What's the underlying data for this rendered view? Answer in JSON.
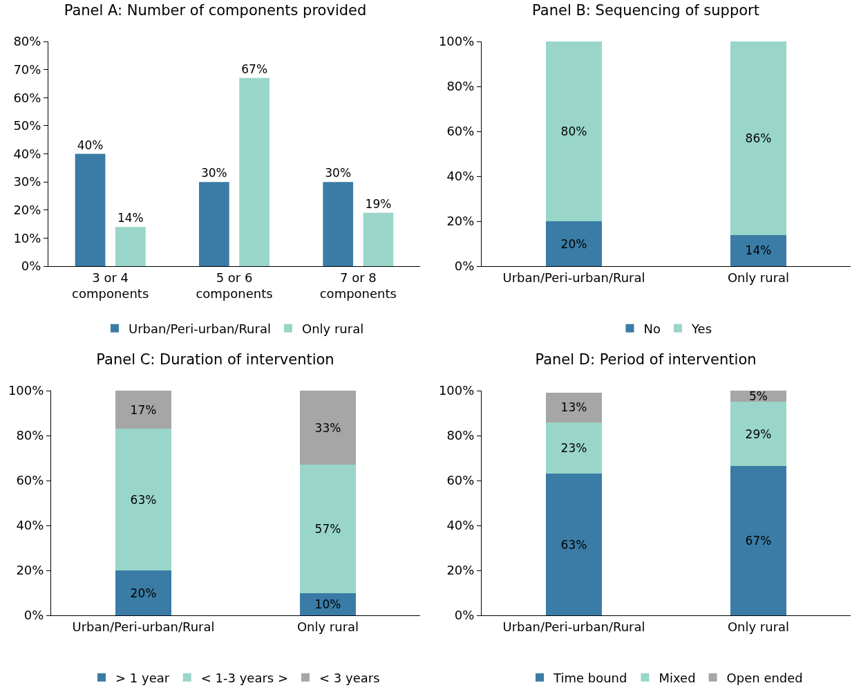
{
  "chart_data": [
    {
      "type": "bar",
      "title": "Panel A: Number of components provided",
      "categories": [
        "3 or 4 components",
        "5 or 6 components",
        "7 or 8 components"
      ],
      "series": [
        {
          "name": "Urban/Peri-urban/Rural",
          "color": "#3a7ca5",
          "values": [
            40,
            30,
            30
          ],
          "value_labels": [
            "40%",
            "30%",
            "30%"
          ]
        },
        {
          "name": "Only rural",
          "color": "#99d6c9",
          "values": [
            14,
            67,
            19
          ],
          "value_labels": [
            "14%",
            "67%",
            "19%"
          ]
        }
      ],
      "ylim": [
        0,
        80
      ],
      "yticks": [
        {
          "value": 0,
          "label": "0%"
        },
        {
          "value": 10,
          "label": "10%"
        },
        {
          "value": 20,
          "label": "20%"
        },
        {
          "value": 30,
          "label": "30%"
        },
        {
          "value": 40,
          "label": "40%"
        },
        {
          "value": 50,
          "label": "50%"
        },
        {
          "value": 60,
          "label": "60%"
        },
        {
          "value": 70,
          "label": "70%"
        },
        {
          "value": 80,
          "label": "80%"
        }
      ],
      "grid": false,
      "legend": "bottom"
    },
    {
      "type": "bar",
      "title": "Panel B: Sequencing of support",
      "categories": [
        "Urban/Peri-urban/Rural",
        "Only rural"
      ],
      "stacked": true,
      "series": [
        {
          "name": "No",
          "color": "#3a7ca5",
          "values": [
            20,
            14
          ],
          "value_labels": [
            "20%",
            "14%"
          ]
        },
        {
          "name": "Yes",
          "color": "#99d6c9",
          "values": [
            80,
            86
          ],
          "value_labels": [
            "80%",
            "86%"
          ]
        }
      ],
      "ylim": [
        0,
        100
      ],
      "yticks": [
        {
          "value": 0,
          "label": "0%"
        },
        {
          "value": 20,
          "label": "20%"
        },
        {
          "value": 40,
          "label": "40%"
        },
        {
          "value": 60,
          "label": "60%"
        },
        {
          "value": 80,
          "label": "80%"
        },
        {
          "value": 100,
          "label": "100%"
        }
      ],
      "grid": false,
      "legend": "bottom"
    },
    {
      "type": "bar",
      "title": "Panel C: Duration of intervention",
      "categories": [
        "Urban/Peri-urban/Rural",
        "Only rural"
      ],
      "stacked": true,
      "series": [
        {
          "name": "> 1 year",
          "color": "#3a7ca5",
          "values": [
            20,
            10
          ],
          "value_labels": [
            "20%",
            "10%"
          ]
        },
        {
          "name": "< 1-3 years >",
          "color": "#99d6c9",
          "values": [
            63,
            57
          ],
          "value_labels": [
            "63%",
            "57%"
          ]
        },
        {
          "name": "< 3 years",
          "color": "#a6a6a6",
          "values": [
            17,
            33
          ],
          "value_labels": [
            "17%",
            "33%"
          ]
        }
      ],
      "ylim": [
        0,
        100
      ],
      "yticks": [
        {
          "value": 0,
          "label": "0%"
        },
        {
          "value": 20,
          "label": "20%"
        },
        {
          "value": 40,
          "label": "40%"
        },
        {
          "value": 60,
          "label": "60%"
        },
        {
          "value": 80,
          "label": "80%"
        },
        {
          "value": 100,
          "label": "100%"
        }
      ],
      "grid": false,
      "legend": "bottom"
    },
    {
      "type": "bar",
      "title": "Panel D: Period of intervention",
      "categories": [
        "Urban/Peri-urban/Rural",
        "Only rural"
      ],
      "stacked": true,
      "series": [
        {
          "name": "Time bound",
          "color": "#3a7ca5",
          "values": [
            63,
            66.5
          ],
          "value_labels": [
            "63%",
            "67%"
          ]
        },
        {
          "name": "Mixed",
          "color": "#99d6c9",
          "values": [
            23,
            28.5
          ],
          "value_labels": [
            "23%",
            "29%"
          ]
        },
        {
          "name": "Open ended",
          "color": "#a6a6a6",
          "values": [
            13,
            5
          ],
          "value_labels": [
            "13%",
            "5%"
          ]
        }
      ],
      "ylim": [
        0,
        100
      ],
      "yticks": [
        {
          "value": 0,
          "label": "0%"
        },
        {
          "value": 20,
          "label": "20%"
        },
        {
          "value": 40,
          "label": "40%"
        },
        {
          "value": 60,
          "label": "60%"
        },
        {
          "value": 80,
          "label": "80%"
        },
        {
          "value": 100,
          "label": "100%"
        }
      ],
      "grid": false,
      "legend": "bottom"
    }
  ]
}
